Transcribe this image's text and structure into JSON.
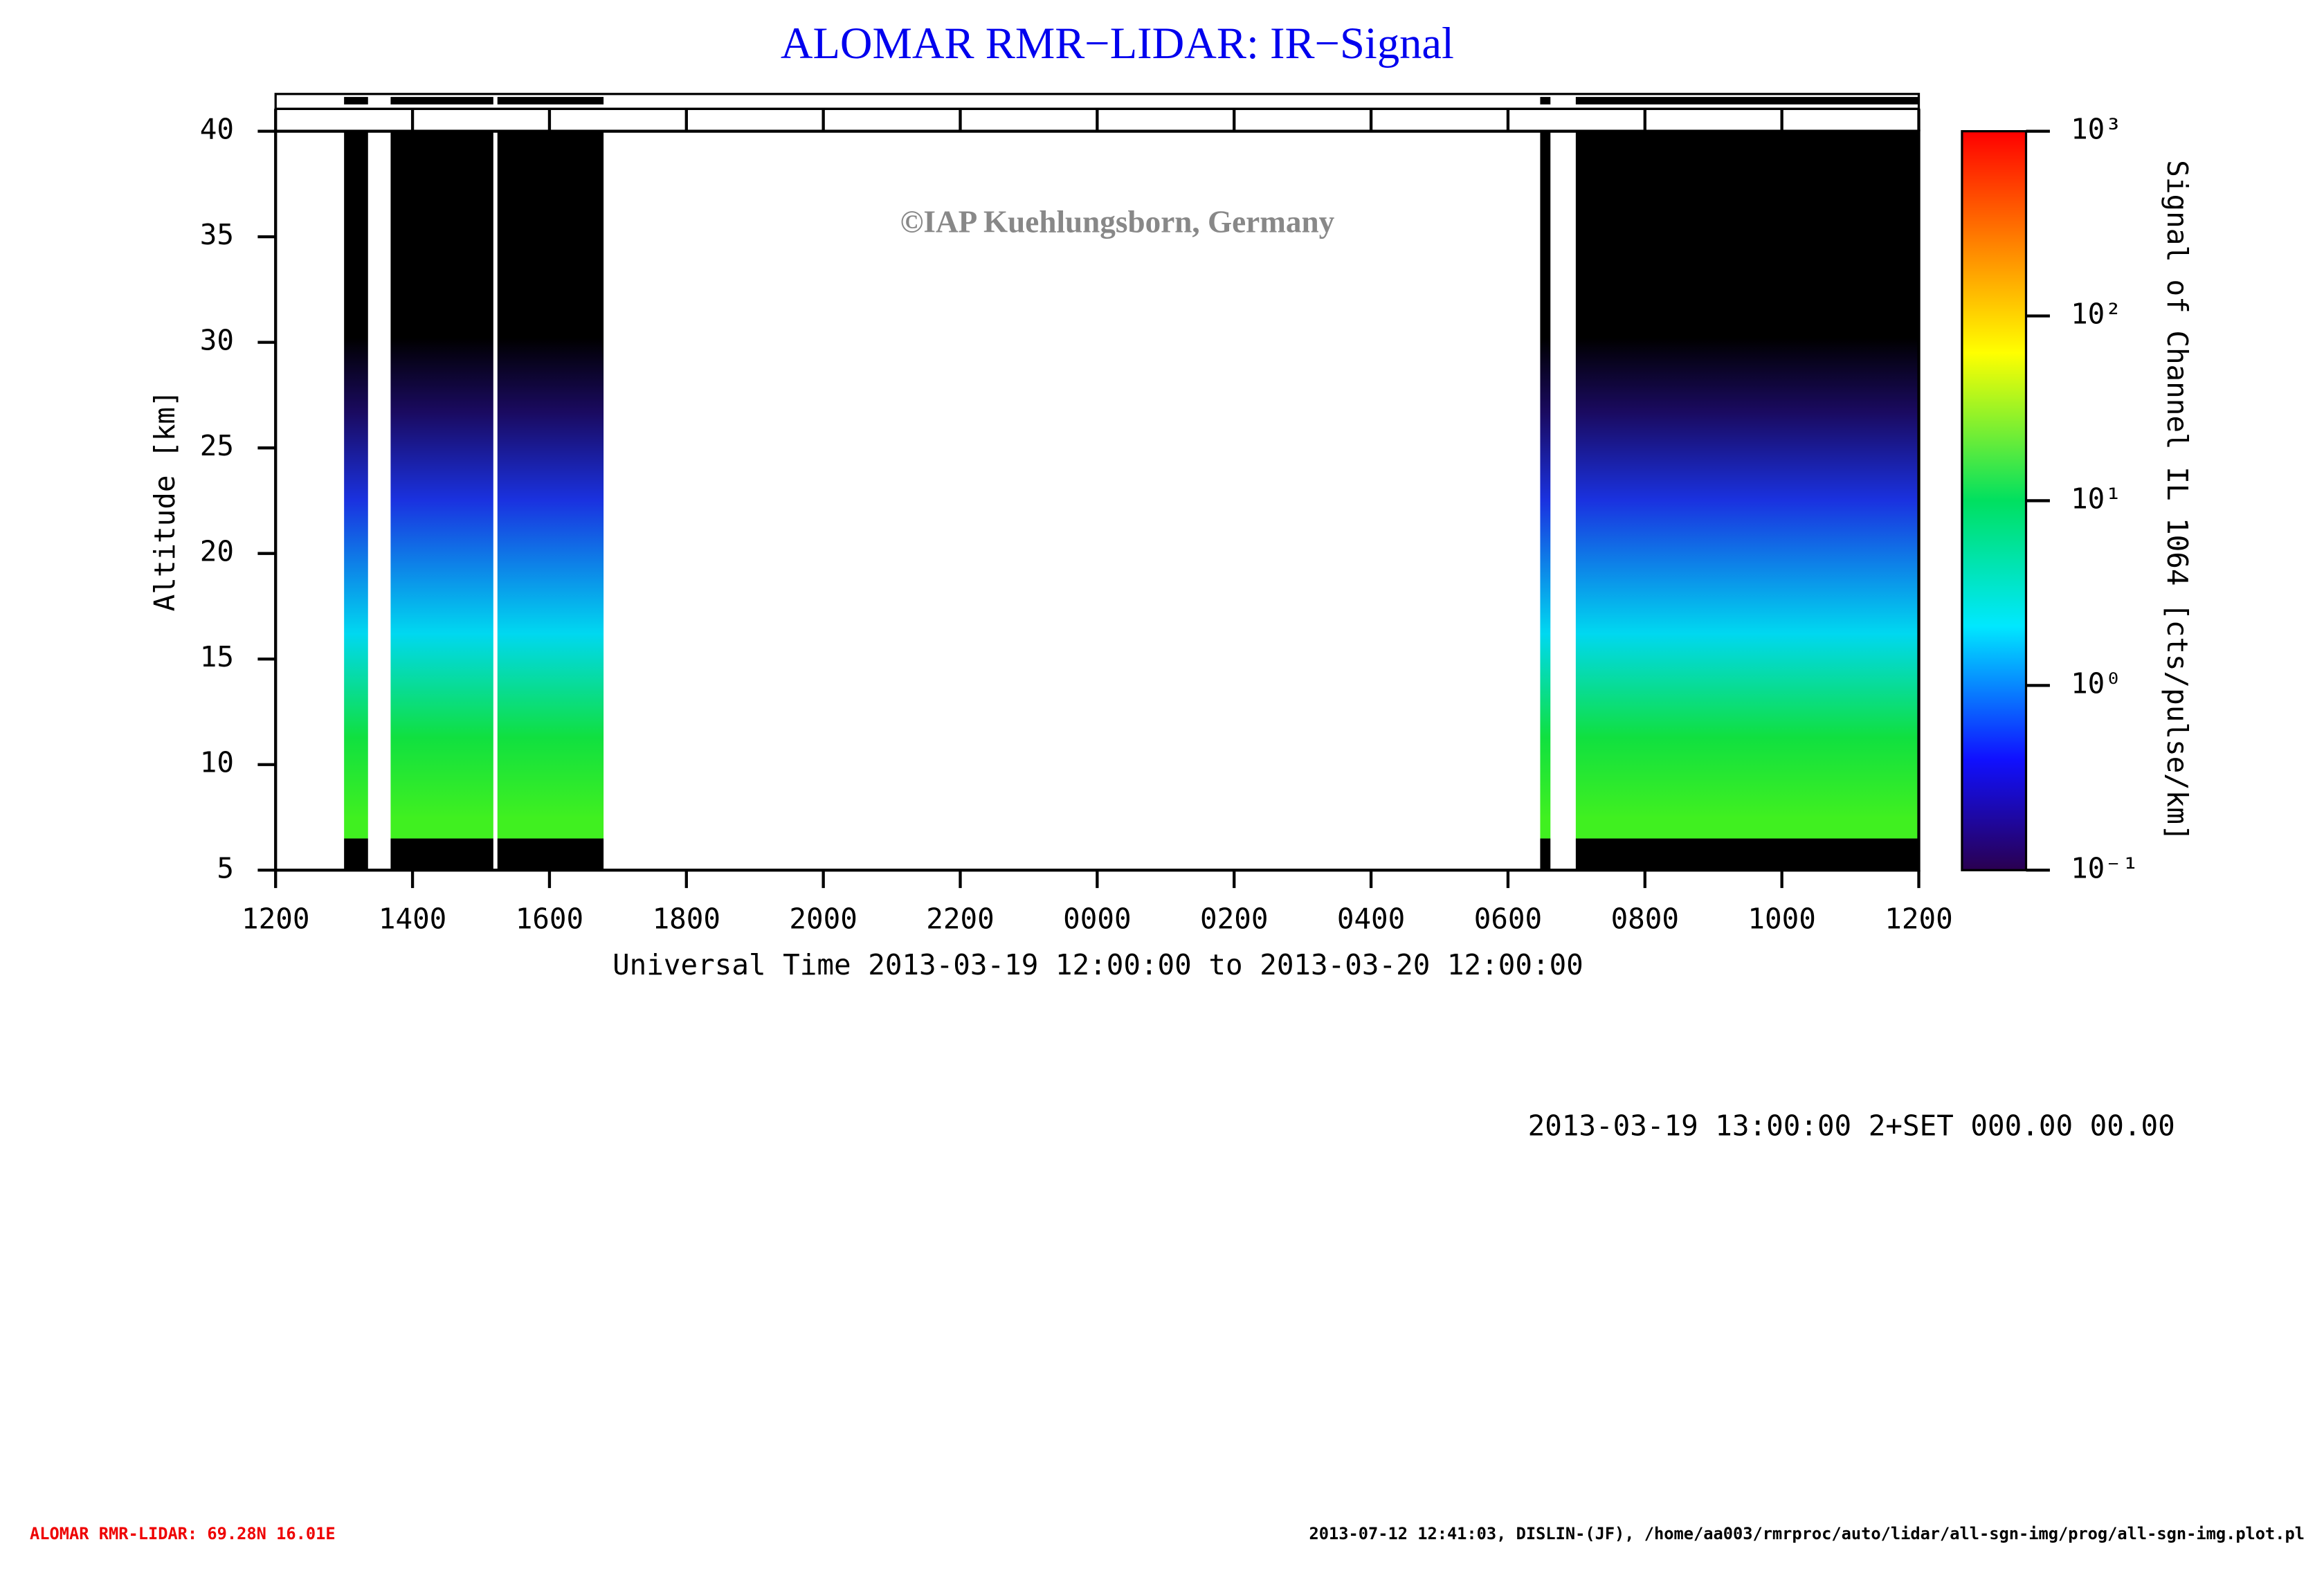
{
  "chart_data": {
    "type": "heatmap",
    "title": "ALOMAR RMR−LIDAR: IR−Signal",
    "watermark": "©IAP Kuehlungsborn, Germany",
    "y_label": "Altitude [km]",
    "x_label": "Universal Time 2013-03-19 12:00:00 to 2013-03-20 12:00:00",
    "xlim": [
      0,
      24
    ],
    "xticks": [
      {
        "value": 0,
        "label": "1200"
      },
      {
        "value": 2,
        "label": "1400"
      },
      {
        "value": 4,
        "label": "1600"
      },
      {
        "value": 6,
        "label": "1800"
      },
      {
        "value": 8,
        "label": "2000"
      },
      {
        "value": 10,
        "label": "2200"
      },
      {
        "value": 12,
        "label": "0000"
      },
      {
        "value": 14,
        "label": "0200"
      },
      {
        "value": 16,
        "label": "0400"
      },
      {
        "value": 18,
        "label": "0600"
      },
      {
        "value": 20,
        "label": "0800"
      },
      {
        "value": 22,
        "label": "1000"
      },
      {
        "value": 24,
        "label": "1200"
      }
    ],
    "ylim": [
      5,
      40
    ],
    "yticks": [
      5,
      10,
      15,
      20,
      25,
      30,
      35,
      40
    ],
    "lower_limit": 6.5,
    "segments": [
      {
        "start": 1.0,
        "end": 1.35
      },
      {
        "start": 1.68,
        "end": 3.18
      },
      {
        "start": 3.24,
        "end": 4.79
      },
      {
        "start": 18.47,
        "end": 18.62
      },
      {
        "start": 18.99,
        "end": 24
      }
    ],
    "colorbar": {
      "label": "Signal of Channel IL 1064 [cts/pulse/km]",
      "log": true,
      "lim": [
        0.1,
        1000
      ],
      "ticks": [
        {
          "value": 0.1,
          "label": "10⁻¹"
        },
        {
          "value": 1,
          "label": "10⁰"
        },
        {
          "value": 10,
          "label": "10¹"
        },
        {
          "value": 100,
          "label": "10²"
        },
        {
          "value": 1000,
          "label": "10³"
        }
      ]
    }
  },
  "status": "2013-03-19 13:00:00 2+SET 000.00 00.00",
  "footer": {
    "left": "ALOMAR RMR-LIDAR: 69.28N 16.01E",
    "right": "2013-07-12 12:41:03, DISLIN-(JF), /home/aa003/rmrproc/auto/lidar/all-sgn-img/prog/all-sgn-img.plot.pl"
  }
}
